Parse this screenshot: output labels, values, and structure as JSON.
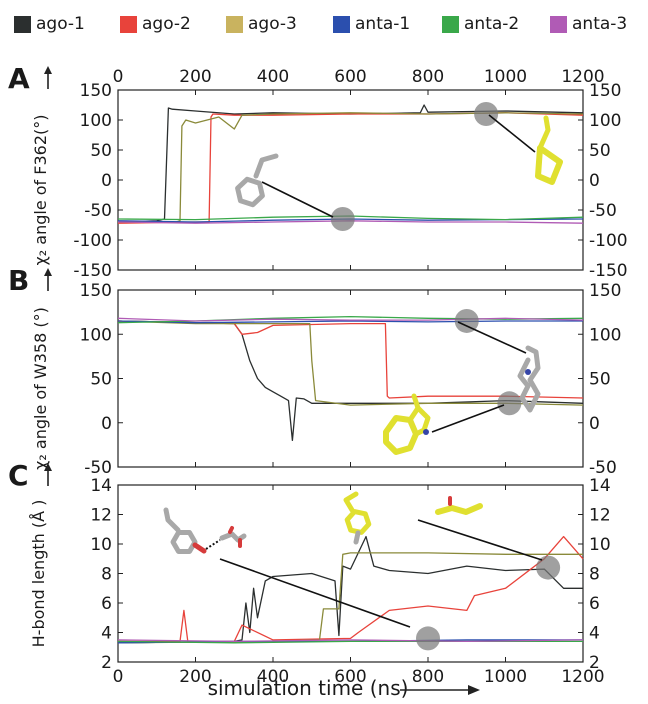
{
  "legend": [
    {
      "label": "ago-1",
      "color": "#2b2f2f"
    },
    {
      "label": "ago-2",
      "color": "#e8433b"
    },
    {
      "label": "ago-3",
      "color": "#c9b35f"
    },
    {
      "label": "anta-1",
      "color": "#2b4fae"
    },
    {
      "label": "anta-2",
      "color": "#3aa84a"
    },
    {
      "label": "anta-3",
      "color": "#b05bb5"
    }
  ],
  "chart_data": [
    {
      "panel_letter": "A",
      "type": "line",
      "xlabel": "",
      "ylabel": "χ₂ angle of F362(°)",
      "xlim": [
        0,
        1200
      ],
      "ylim": [
        -150,
        150
      ],
      "xticks": [
        0,
        200,
        400,
        600,
        800,
        1000,
        1200
      ],
      "yticks": [
        -150,
        -100,
        -50,
        0,
        50,
        100,
        150
      ],
      "x_tick_labels_position": "top",
      "right_axis_ticks": true,
      "series": [
        {
          "name": "ago-1",
          "color": "#2b2f2f",
          "x": [
            0,
            100,
            120,
            130,
            140,
            200,
            300,
            400,
            600,
            780,
            790,
            800,
            1000,
            1200
          ],
          "y": [
            -70,
            -68,
            -65,
            120,
            118,
            115,
            110,
            112,
            110,
            112,
            125,
            113,
            115,
            112
          ]
        },
        {
          "name": "ago-2",
          "color": "#e8433b",
          "x": [
            0,
            200,
            235,
            240,
            245,
            300,
            400,
            600,
            800,
            1000,
            1200
          ],
          "y": [
            -72,
            -70,
            -70,
            105,
            110,
            108,
            108,
            110,
            110,
            112,
            108
          ]
        },
        {
          "name": "ago-3",
          "color": "#8a8a3a",
          "x": [
            0,
            150,
            160,
            165,
            175,
            200,
            260,
            300,
            320,
            400,
            600,
            800,
            1000,
            1200
          ],
          "y": [
            -70,
            -70,
            -68,
            90,
            100,
            95,
            105,
            85,
            108,
            110,
            112,
            110,
            112,
            110
          ]
        },
        {
          "name": "anta-1",
          "color": "#2b4fae",
          "x": [
            0,
            200,
            400,
            600,
            800,
            1000,
            1200
          ],
          "y": [
            -68,
            -70,
            -67,
            -65,
            -67,
            -66,
            -65
          ]
        },
        {
          "name": "anta-2",
          "color": "#3aa84a",
          "x": [
            0,
            200,
            400,
            600,
            800,
            1000,
            1200
          ],
          "y": [
            -65,
            -66,
            -62,
            -60,
            -64,
            -66,
            -62
          ]
        },
        {
          "name": "anta-3",
          "color": "#b05bb5",
          "x": [
            0,
            200,
            400,
            600,
            800,
            1000,
            1200
          ],
          "y": [
            -70,
            -72,
            -70,
            -68,
            -70,
            -70,
            -72
          ]
        }
      ],
      "annotations": [
        {
          "type": "circle",
          "x": 950,
          "y": 110
        },
        {
          "type": "circle",
          "x": 580,
          "y": -65
        }
      ]
    },
    {
      "panel_letter": "B",
      "type": "line",
      "xlabel": "",
      "ylabel": "χ₂ angle of W358 (°)",
      "xlim": [
        0,
        1200
      ],
      "ylim": [
        -50,
        150
      ],
      "xticks": [
        0,
        200,
        400,
        600,
        800,
        1000,
        1200
      ],
      "yticks": [
        -50,
        0,
        50,
        100,
        150
      ],
      "right_axis_ticks": true,
      "series": [
        {
          "name": "ago-1",
          "color": "#2b2f2f",
          "x": [
            0,
            200,
            300,
            320,
            340,
            360,
            380,
            400,
            420,
            440,
            450,
            460,
            480,
            500,
            600,
            800,
            1000,
            1200
          ],
          "y": [
            115,
            113,
            112,
            100,
            70,
            50,
            40,
            35,
            30,
            25,
            -20,
            28,
            27,
            22,
            22,
            22,
            25,
            22
          ]
        },
        {
          "name": "ago-2",
          "color": "#e8433b",
          "x": [
            0,
            200,
            300,
            320,
            360,
            400,
            600,
            690,
            695,
            700,
            800,
            1000,
            1200
          ],
          "y": [
            115,
            113,
            112,
            100,
            102,
            110,
            112,
            112,
            30,
            28,
            30,
            30,
            28
          ]
        },
        {
          "name": "ago-3",
          "color": "#8a8a3a",
          "x": [
            0,
            200,
            400,
            495,
            500,
            510,
            600,
            800,
            1000,
            1200
          ],
          "y": [
            115,
            112,
            112,
            112,
            70,
            25,
            20,
            22,
            22,
            20
          ]
        },
        {
          "name": "anta-1",
          "color": "#2b4fae",
          "x": [
            0,
            200,
            400,
            600,
            800,
            1000,
            1200
          ],
          "y": [
            115,
            113,
            114,
            115,
            114,
            115,
            115
          ]
        },
        {
          "name": "anta-2",
          "color": "#3aa84a",
          "x": [
            0,
            200,
            400,
            600,
            800,
            1000,
            1200
          ],
          "y": [
            113,
            115,
            118,
            120,
            118,
            117,
            118
          ]
        },
        {
          "name": "anta-3",
          "color": "#b05bb5",
          "x": [
            0,
            200,
            400,
            600,
            800,
            1000,
            1200
          ],
          "y": [
            118,
            115,
            117,
            116,
            116,
            118,
            116
          ]
        }
      ],
      "annotations": [
        {
          "type": "circle",
          "x": 900,
          "y": 115
        },
        {
          "type": "circle",
          "x": 1010,
          "y": 22
        }
      ]
    },
    {
      "panel_letter": "C",
      "type": "line",
      "xlabel": "simulation time (ns)",
      "ylabel": "H-bond length (Å )",
      "xlim": [
        0,
        1200
      ],
      "ylim": [
        2,
        14
      ],
      "xticks": [
        0,
        200,
        400,
        600,
        800,
        1000,
        1200
      ],
      "yticks": [
        2,
        4,
        6,
        8,
        10,
        12,
        14
      ],
      "right_axis_ticks": true,
      "series": [
        {
          "name": "ago-1",
          "color": "#2b2f2f",
          "x": [
            0,
            300,
            320,
            330,
            340,
            350,
            360,
            380,
            400,
            500,
            560,
            570,
            580,
            600,
            640,
            660,
            700,
            800,
            900,
            1000,
            1100,
            1150,
            1200
          ],
          "y": [
            3.3,
            3.4,
            3.5,
            6,
            4,
            7,
            5,
            7.5,
            7.8,
            8,
            7.5,
            3.8,
            8.5,
            8.3,
            10.5,
            8.5,
            8.2,
            8,
            8.5,
            8.2,
            8.3,
            7,
            7
          ]
        },
        {
          "name": "ago-2",
          "color": "#e8433b",
          "x": [
            0,
            160,
            170,
            180,
            300,
            320,
            400,
            600,
            620,
            700,
            800,
            900,
            920,
            1000,
            1100,
            1150,
            1200
          ],
          "y": [
            3.4,
            3.4,
            5.5,
            3.4,
            3.4,
            4.5,
            3.5,
            3.6,
            4,
            5.5,
            5.8,
            5.5,
            6.5,
            7,
            9,
            10.5,
            9
          ]
        },
        {
          "name": "ago-3",
          "color": "#8a8a3a",
          "x": [
            0,
            400,
            520,
            530,
            570,
            580,
            600,
            800,
            1000,
            1200
          ],
          "y": [
            3.3,
            3.4,
            3.5,
            5.6,
            5.6,
            9.3,
            9.4,
            9.4,
            9.3,
            9.3
          ]
        },
        {
          "name": "anta-1",
          "color": "#2b4fae",
          "x": [
            0,
            300,
            600,
            900,
            1200
          ],
          "y": [
            3.3,
            3.4,
            3.4,
            3.5,
            3.5
          ]
        },
        {
          "name": "anta-2",
          "color": "#3aa84a",
          "x": [
            0,
            300,
            600,
            900,
            1200
          ],
          "y": [
            3.4,
            3.3,
            3.4,
            3.4,
            3.4
          ]
        },
        {
          "name": "anta-3",
          "color": "#b05bb5",
          "x": [
            0,
            300,
            600,
            900,
            1200
          ],
          "y": [
            3.5,
            3.4,
            3.5,
            3.4,
            3.5
          ]
        }
      ],
      "annotations": [
        {
          "type": "circle",
          "x": 800,
          "y": 3.6
        },
        {
          "type": "circle",
          "x": 1110,
          "y": 8.4
        }
      ]
    }
  ],
  "molecule_colors": {
    "gray": "#a8a8a8",
    "yellow": "#e0e030",
    "oxygen": "#d63b3b",
    "nitrogen": "#3545a8"
  }
}
